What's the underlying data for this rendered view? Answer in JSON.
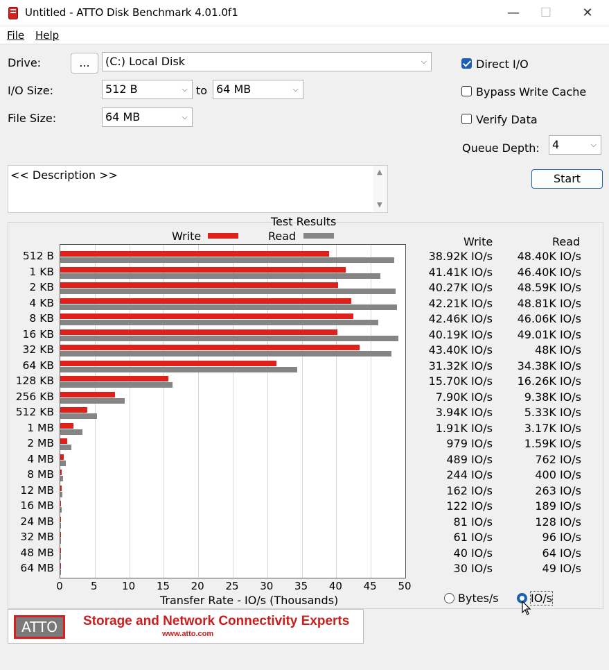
{
  "window": {
    "title": "Untitled - ATTO Disk Benchmark 4.01.0f1",
    "minimize": "—",
    "maximize": "☐",
    "close": "✕"
  },
  "menu": {
    "file": "File",
    "help": "Help"
  },
  "form": {
    "drive_label": "Drive:",
    "browse_label": "...",
    "drive_value": "(C:) Local Disk",
    "io_size_label": "I/O Size:",
    "io_from": "512 B",
    "to_label": "to",
    "io_to": "64 MB",
    "file_size_label": "File Size:",
    "file_size": "64 MB",
    "direct_io_label": "Direct I/O",
    "direct_io_checked": true,
    "bypass_label": "Bypass Write Cache",
    "bypass_checked": false,
    "verify_label": "Verify Data",
    "verify_checked": false,
    "queue_label": "Queue Depth:",
    "queue_value": "4",
    "start_label": "Start",
    "description": "<< Description >>"
  },
  "results": {
    "write_header": "Write",
    "read_header": "Read",
    "rows": [
      {
        "w": "38.92K IO/s",
        "r": "48.40K IO/s"
      },
      {
        "w": "41.41K IO/s",
        "r": "46.40K IO/s"
      },
      {
        "w": "40.27K IO/s",
        "r": "48.59K IO/s"
      },
      {
        "w": "42.21K IO/s",
        "r": "48.81K IO/s"
      },
      {
        "w": "42.46K IO/s",
        "r": "46.06K IO/s"
      },
      {
        "w": "40.19K IO/s",
        "r": "49.01K IO/s"
      },
      {
        "w": "43.40K IO/s",
        "r": "48K IO/s"
      },
      {
        "w": "31.32K IO/s",
        "r": "34.38K IO/s"
      },
      {
        "w": "15.70K IO/s",
        "r": "16.26K IO/s"
      },
      {
        "w": "7.90K IO/s",
        "r": "9.38K IO/s"
      },
      {
        "w": "3.94K IO/s",
        "r": "5.33K IO/s"
      },
      {
        "w": "1.91K IO/s",
        "r": "3.17K IO/s"
      },
      {
        "w": "979 IO/s",
        "r": "1.59K IO/s"
      },
      {
        "w": "489 IO/s",
        "r": "762 IO/s"
      },
      {
        "w": "244 IO/s",
        "r": "400 IO/s"
      },
      {
        "w": "162 IO/s",
        "r": "263 IO/s"
      },
      {
        "w": "122 IO/s",
        "r": "189 IO/s"
      },
      {
        "w": "81 IO/s",
        "r": "128 IO/s"
      },
      {
        "w": "61 IO/s",
        "r": "96 IO/s"
      },
      {
        "w": "40 IO/s",
        "r": "64 IO/s"
      },
      {
        "w": "30 IO/s",
        "r": "49 IO/s"
      }
    ],
    "bytes_label": "Bytes/s",
    "ios_label": "IO/s",
    "selected_unit": "IO/s"
  },
  "chart_data": {
    "type": "bar",
    "title": "Test Results",
    "xlabel": "Transfer Rate - IO/s (Thousands)",
    "xlim": [
      0,
      50
    ],
    "xticks": [
      0,
      5,
      10,
      15,
      20,
      25,
      30,
      35,
      40,
      45,
      50
    ],
    "categories": [
      "512 B",
      "1 KB",
      "2 KB",
      "4 KB",
      "8 KB",
      "16 KB",
      "32 KB",
      "64 KB",
      "128 KB",
      "256 KB",
      "512 KB",
      "1 MB",
      "2 MB",
      "4 MB",
      "8 MB",
      "12 MB",
      "16 MB",
      "24 MB",
      "32 MB",
      "48 MB",
      "64 MB"
    ],
    "series": [
      {
        "name": "Write",
        "color": "#e0201b",
        "values": [
          38.92,
          41.41,
          40.27,
          42.21,
          42.46,
          40.19,
          43.4,
          31.32,
          15.7,
          7.9,
          3.94,
          1.91,
          0.979,
          0.489,
          0.244,
          0.162,
          0.122,
          0.081,
          0.061,
          0.04,
          0.03
        ]
      },
      {
        "name": "Read",
        "color": "#858585",
        "values": [
          48.4,
          46.4,
          48.59,
          48.81,
          46.06,
          49.01,
          48.0,
          34.38,
          16.26,
          9.38,
          5.33,
          3.17,
          1.59,
          0.762,
          0.4,
          0.263,
          0.189,
          0.128,
          0.096,
          0.064,
          0.049
        ]
      }
    ],
    "legend": "top"
  },
  "banner": {
    "logo": "ATTO",
    "tagline": "Storage and Network Connectivity Experts",
    "url": "www.atto.com"
  }
}
